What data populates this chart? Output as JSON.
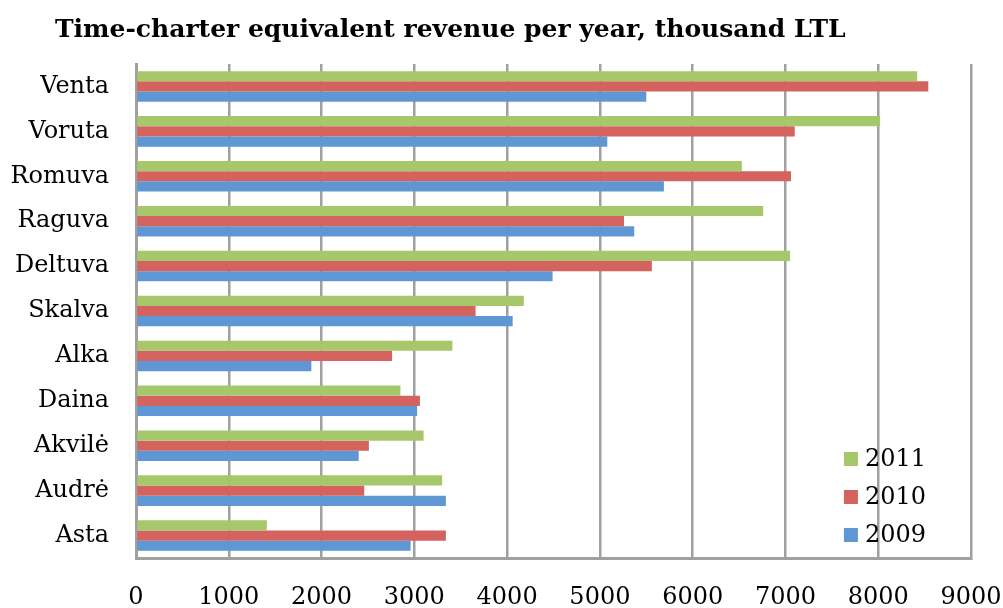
{
  "chart_data": {
    "type": "bar",
    "orientation": "horizontal",
    "title": "Time-charter equivalent revenue per year, thousand LTL",
    "categories": [
      "Venta",
      "Voruta",
      "Romuva",
      "Raguva",
      "Deltuva",
      "Skalva",
      "Alka",
      "Daina",
      "Akvilė",
      "Audrė",
      "Asta"
    ],
    "series": [
      {
        "name": "2011",
        "color": "#a6c76a",
        "values": [
          8420,
          8020,
          6530,
          6760,
          7050,
          4180,
          3410,
          2850,
          3100,
          3300,
          1410
        ]
      },
      {
        "name": "2010",
        "color": "#d4625f",
        "values": [
          8540,
          7100,
          7060,
          5260,
          5560,
          3660,
          2760,
          3060,
          2510,
          2460,
          3340
        ]
      },
      {
        "name": "2009",
        "color": "#5f97d4",
        "values": [
          5500,
          5080,
          5690,
          5370,
          4490,
          4060,
          1890,
          3030,
          2400,
          3340,
          2960
        ]
      }
    ],
    "xlim": [
      0,
      9000
    ],
    "xticks": [
      0,
      1000,
      2000,
      3000,
      4000,
      5000,
      6000,
      7000,
      8000,
      9000
    ],
    "grid": "x",
    "legend": "bottom right"
  }
}
